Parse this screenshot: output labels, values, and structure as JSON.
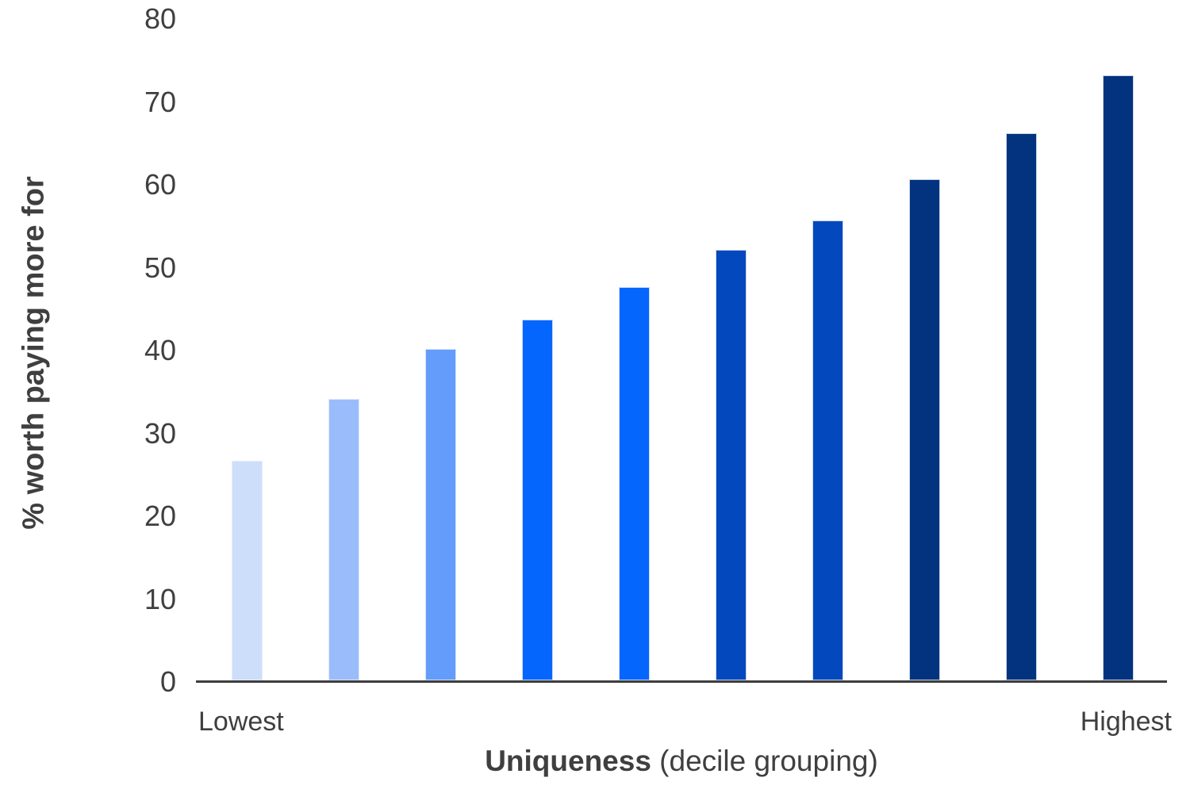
{
  "chart_data": {
    "type": "bar",
    "title": "",
    "ylabel": "% worth paying more for",
    "xlabel_bold": "Uniqueness",
    "xlabel_rest": " (decile grouping)",
    "x_end_labels": [
      "Lowest",
      "Highest"
    ],
    "categories": [
      "Lowest",
      "",
      "",
      "",
      "",
      "",
      "",
      "",
      "",
      "Highest"
    ],
    "values": [
      26.5,
      34,
      40,
      43.5,
      47.5,
      52,
      55.5,
      60.5,
      66,
      73
    ],
    "bar_colors": [
      "#cddefb",
      "#9abcfb",
      "#649cfb",
      "#0566fe",
      "#0566fe",
      "#0448bd",
      "#0448bd",
      "#03337e",
      "#03337e",
      "#03337e"
    ],
    "ylim": [
      0,
      80
    ],
    "yticks": [
      0,
      10,
      20,
      30,
      40,
      50,
      60,
      70,
      80
    ],
    "grid": false,
    "legend": null,
    "axis_color": "#3d3d3d",
    "text_color": "#3f3f3f"
  }
}
